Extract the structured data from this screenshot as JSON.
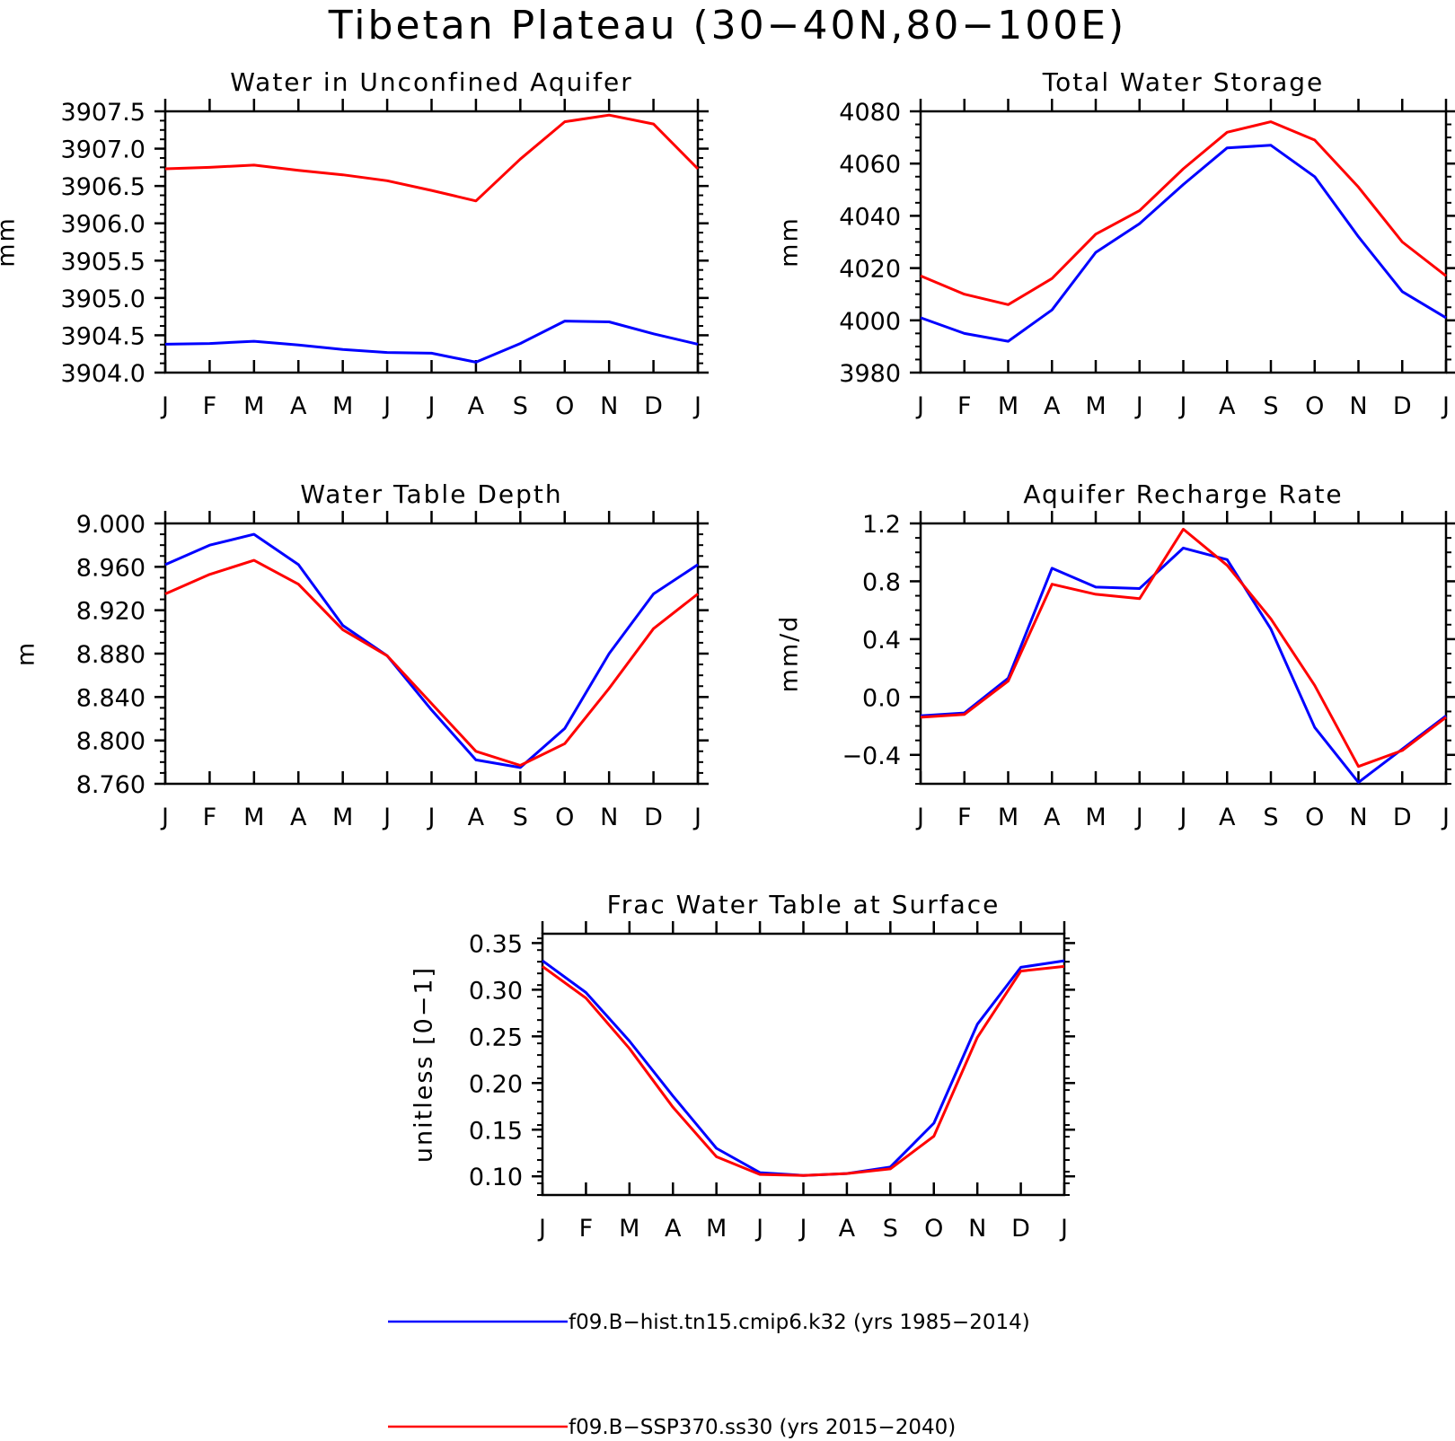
{
  "title": "Tibetan Plateau (30−40N,80−100E)",
  "colors": {
    "hist": "#0000ff",
    "ssp": "#ff0000"
  },
  "months": [
    "J",
    "F",
    "M",
    "A",
    "M",
    "J",
    "J",
    "A",
    "S",
    "O",
    "N",
    "D",
    "J"
  ],
  "legend": [
    {
      "key": "hist",
      "label": "f09.B−hist.tn15.cmip6.k32 (yrs 1985−2014)"
    },
    {
      "key": "ssp",
      "label": "f09.B−SSP370.ss30 (yrs 2015−2040)"
    }
  ],
  "chart_data": [
    {
      "type": "line",
      "title": "Water in Unconfined Aquifer",
      "ylabel": "mm",
      "ylim": [
        3904.0,
        3907.5
      ],
      "yticks": [
        "3904.0",
        "3904.5",
        "3905.0",
        "3905.5",
        "3906.0",
        "3906.5",
        "3907.0",
        "3907.5"
      ],
      "categories": [
        "J",
        "F",
        "M",
        "A",
        "M",
        "J",
        "J",
        "A",
        "S",
        "O",
        "N",
        "D",
        "J"
      ],
      "series": [
        {
          "key": "hist",
          "values": [
            3904.38,
            3904.39,
            3904.42,
            3904.37,
            3904.31,
            3904.27,
            3904.26,
            3904.14,
            3904.39,
            3904.69,
            3904.68,
            3904.52,
            3904.38
          ]
        },
        {
          "key": "ssp",
          "values": [
            3906.73,
            3906.75,
            3906.78,
            3906.71,
            3906.65,
            3906.57,
            3906.44,
            3906.3,
            3906.86,
            3907.36,
            3907.45,
            3907.33,
            3906.73
          ]
        }
      ]
    },
    {
      "type": "line",
      "title": "Total Water Storage",
      "ylabel": "mm",
      "ylim": [
        3980,
        4080
      ],
      "yticks": [
        "3980",
        "4000",
        "4020",
        "4040",
        "4060",
        "4080"
      ],
      "categories": [
        "J",
        "F",
        "M",
        "A",
        "M",
        "J",
        "J",
        "A",
        "S",
        "O",
        "N",
        "D",
        "J"
      ],
      "series": [
        {
          "key": "hist",
          "values": [
            4001,
            3995,
            3992,
            4004,
            4026,
            4037,
            4052,
            4066,
            4067,
            4055,
            4032,
            4011,
            4001
          ]
        },
        {
          "key": "ssp",
          "values": [
            4017,
            4010,
            4006,
            4016,
            4033,
            4042,
            4058,
            4072,
            4076,
            4069,
            4051,
            4030,
            4017
          ]
        }
      ]
    },
    {
      "type": "line",
      "title": "Water Table Depth",
      "ylabel": "m",
      "ylim": [
        8.76,
        9.0
      ],
      "yticks": [
        "8.760",
        "8.800",
        "8.840",
        "8.880",
        "8.920",
        "8.960",
        "9.000"
      ],
      "categories": [
        "J",
        "F",
        "M",
        "A",
        "M",
        "J",
        "J",
        "A",
        "S",
        "O",
        "N",
        "D",
        "J"
      ],
      "series": [
        {
          "key": "hist",
          "values": [
            8.962,
            8.98,
            8.99,
            8.962,
            8.906,
            8.878,
            8.828,
            8.782,
            8.775,
            8.811,
            8.88,
            8.935,
            8.962
          ]
        },
        {
          "key": "ssp",
          "values": [
            8.935,
            8.953,
            8.966,
            8.944,
            8.902,
            8.878,
            8.834,
            8.79,
            8.777,
            8.797,
            8.848,
            8.903,
            8.935
          ]
        }
      ]
    },
    {
      "type": "line",
      "title": "Aquifer Recharge Rate",
      "ylabel": "mm/d",
      "ylim": [
        -0.6,
        1.2
      ],
      "yticks": [
        "−0.4",
        "0.0",
        "0.4",
        "0.8",
        "1.2"
      ],
      "ytick_values": [
        -0.4,
        0.0,
        0.4,
        0.8,
        1.2
      ],
      "categories": [
        "J",
        "F",
        "M",
        "A",
        "M",
        "J",
        "J",
        "A",
        "S",
        "O",
        "N",
        "D",
        "J"
      ],
      "series": [
        {
          "key": "hist",
          "values": [
            -0.13,
            -0.11,
            0.13,
            0.89,
            0.76,
            0.75,
            1.03,
            0.95,
            0.47,
            -0.21,
            -0.59,
            -0.36,
            -0.13
          ]
        },
        {
          "key": "ssp",
          "values": [
            -0.14,
            -0.12,
            0.11,
            0.78,
            0.71,
            0.68,
            1.16,
            0.91,
            0.54,
            0.08,
            -0.48,
            -0.37,
            -0.14
          ]
        }
      ]
    },
    {
      "type": "line",
      "title": "Frac Water Table at Surface",
      "ylabel": "unitless [0−1]",
      "ylim": [
        0.08,
        0.36
      ],
      "yticks": [
        "0.10",
        "0.15",
        "0.20",
        "0.25",
        "0.30",
        "0.35"
      ],
      "ytick_values": [
        0.1,
        0.15,
        0.2,
        0.25,
        0.3,
        0.35
      ],
      "categories": [
        "J",
        "F",
        "M",
        "A",
        "M",
        "J",
        "J",
        "A",
        "S",
        "O",
        "N",
        "D",
        "J"
      ],
      "series": [
        {
          "key": "hist",
          "values": [
            0.331,
            0.297,
            0.245,
            0.186,
            0.13,
            0.104,
            0.101,
            0.103,
            0.11,
            0.157,
            0.263,
            0.324,
            0.331
          ]
        },
        {
          "key": "ssp",
          "values": [
            0.325,
            0.291,
            0.237,
            0.174,
            0.121,
            0.102,
            0.101,
            0.103,
            0.108,
            0.143,
            0.249,
            0.32,
            0.325
          ]
        }
      ]
    }
  ]
}
